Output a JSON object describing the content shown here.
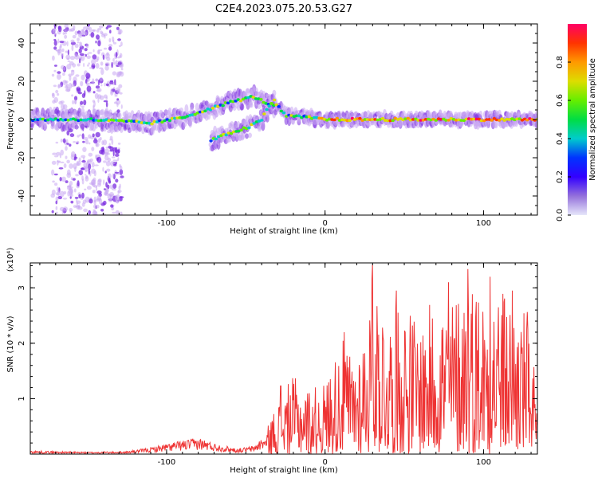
{
  "title": "C2E4.2023.075.20.53.G27",
  "colors": {
    "snr_line": "#ee3333",
    "axis": "#000000",
    "colorbar": [
      "#e6e6fa",
      "#9370db",
      "#3300ff",
      "#0033ff",
      "#00cccc",
      "#00dd44",
      "#66ee00",
      "#dddd00",
      "#ff9900",
      "#ff3300",
      "#ff0066"
    ]
  },
  "chart_data": [
    {
      "type": "heatmap",
      "xlabel": "Height of straight line (km)",
      "ylabel": "Frequency (Hz)",
      "xlim": [
        -186,
        134
      ],
      "ylim": [
        -50,
        50
      ],
      "xticks": [
        {
          "v": -100,
          "label": "-100"
        },
        {
          "v": 0,
          "label": "0"
        },
        {
          "v": 100,
          "label": "100"
        }
      ],
      "yticks": [
        {
          "v": 40,
          "label": "40"
        },
        {
          "v": 20,
          "label": "20"
        },
        {
          "v": 0,
          "label": "0"
        },
        {
          "v": -20,
          "label": "-20"
        },
        {
          "v": -40,
          "label": "-40"
        }
      ],
      "colorbar": {
        "label": "Normalized spectral amplitude",
        "range": [
          0,
          1
        ],
        "ticks": [
          {
            "v": 0.0,
            "label": "0.0"
          },
          {
            "v": 0.2,
            "label": "0.2"
          },
          {
            "v": 0.4,
            "label": "0.4"
          },
          {
            "v": 0.6,
            "label": "0.6"
          },
          {
            "v": 0.8,
            "label": "0.8"
          }
        ]
      },
      "traces": [
        {
          "points": [
            [
              -186,
              0
            ],
            [
              -150,
              0
            ],
            [
              -125,
              -1
            ],
            [
              -110,
              -2
            ],
            [
              -90,
              1
            ],
            [
              -75,
              5
            ],
            [
              -60,
              9
            ],
            [
              -45,
              12
            ],
            [
              -38,
              9
            ],
            [
              -30,
              7
            ],
            [
              -25,
              2
            ],
            [
              -10,
              1
            ],
            [
              0,
              0
            ],
            [
              134,
              0
            ]
          ]
        },
        {
          "points": [
            [
              -72,
              -11
            ],
            [
              -60,
              -7
            ],
            [
              -48,
              -4
            ],
            [
              -40,
              0
            ],
            [
              -36,
              6
            ],
            [
              -32,
              10
            ]
          ]
        }
      ],
      "diffuse_region": {
        "x": [
          -172,
          -128
        ],
        "y": [
          -50,
          50
        ]
      }
    },
    {
      "type": "line",
      "xlabel": "Height of straight line (km)",
      "ylabel": "SNR (10 * v/v)",
      "y_multiplier_label": "(x10⁴)",
      "xlim": [
        -186,
        134
      ],
      "ylim": [
        0,
        3.45
      ],
      "xticks": [
        {
          "v": -100,
          "label": "-100"
        },
        {
          "v": 0,
          "label": "0"
        },
        {
          "v": 100,
          "label": "100"
        }
      ],
      "yticks": [
        {
          "v": 1,
          "label": "1"
        },
        {
          "v": 2,
          "label": "2"
        },
        {
          "v": 3,
          "label": "3"
        }
      ],
      "envelope": [
        [
          -186,
          0.06
        ],
        [
          -150,
          0.04
        ],
        [
          -125,
          0.05
        ],
        [
          -110,
          0.12
        ],
        [
          -95,
          0.22
        ],
        [
          -80,
          0.3
        ],
        [
          -70,
          0.2
        ],
        [
          -55,
          0.1
        ],
        [
          -45,
          0.15
        ],
        [
          -38,
          0.35
        ],
        [
          -33,
          0.75
        ],
        [
          -28,
          1.1
        ],
        [
          -20,
          1.4
        ],
        [
          -10,
          1.2
        ],
        [
          0,
          1.3
        ],
        [
          10,
          2.1
        ],
        [
          18,
          1.8
        ],
        [
          28,
          2.6
        ],
        [
          30,
          3.4
        ],
        [
          40,
          2.5
        ],
        [
          50,
          2.8
        ],
        [
          60,
          2.4
        ],
        [
          70,
          2.9
        ],
        [
          80,
          2.8
        ],
        [
          90,
          3.3
        ],
        [
          100,
          3.0
        ],
        [
          110,
          3.1
        ],
        [
          120,
          2.7
        ],
        [
          130,
          2.6
        ],
        [
          134,
          0.5
        ]
      ],
      "peaks": [
        [
          30,
          3.42
        ],
        [
          90,
          3.34
        ],
        [
          78,
          3.1
        ],
        [
          45,
          2.95
        ],
        [
          118,
          2.95
        ],
        [
          104,
          3.2
        ],
        [
          12,
          2.2
        ],
        [
          -28,
          1.23
        ]
      ]
    }
  ]
}
